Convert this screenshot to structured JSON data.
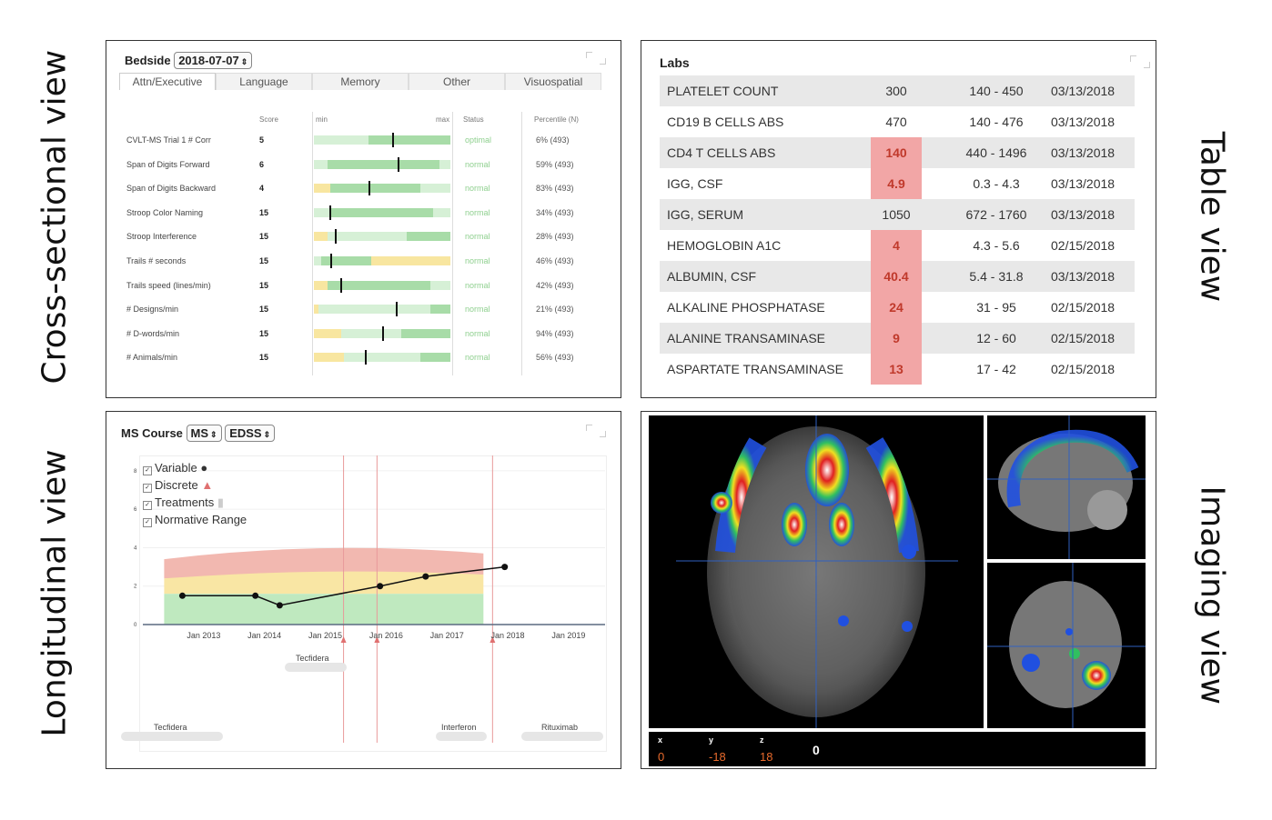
{
  "labels": {
    "cross_sectional": "Cross-sectional view",
    "longitudinal": "Longitudinal view",
    "table": "Table view",
    "imaging": "Imaging view"
  },
  "bedside": {
    "title": "Bedside",
    "date": "2018-07-07",
    "tabs": [
      "Attn/Executive",
      "Language",
      "Memory",
      "Other",
      "Visuospatial"
    ],
    "columns": {
      "score": "Score",
      "min": "min",
      "max": "max",
      "status": "Status",
      "percentile": "Percentile (N)"
    },
    "rows": [
      {
        "name": "CVLT-MS Trial 1 # Corr",
        "score": "5",
        "status": "optimal",
        "percentile": "6% (493)",
        "level": 0.57,
        "yellow": [
          0,
          0
        ],
        "dark": [
          0.4,
          1.0
        ]
      },
      {
        "name": "Span of Digits Forward",
        "score": "6",
        "status": "normal",
        "percentile": "59% (493)",
        "level": 0.61,
        "yellow": [
          0,
          0
        ],
        "dark": [
          0.1,
          0.92
        ]
      },
      {
        "name": "Span of Digits Backward",
        "score": "4",
        "status": "normal",
        "percentile": "83% (493)",
        "level": 0.4,
        "yellow": [
          0,
          0.12
        ],
        "dark": [
          0.12,
          0.78
        ]
      },
      {
        "name": "Stroop Color Naming",
        "score": "15",
        "status": "normal",
        "percentile": "34% (493)",
        "level": 0.11,
        "yellow": [
          0,
          0
        ],
        "dark": [
          0.12,
          0.87
        ]
      },
      {
        "name": "Stroop Interference",
        "score": "15",
        "status": "normal",
        "percentile": "28% (493)",
        "level": 0.15,
        "yellow": [
          0,
          0.1
        ],
        "dark": [
          0.68,
          1.0
        ]
      },
      {
        "name": "Trails # seconds",
        "score": "15",
        "status": "normal",
        "percentile": "46% (493)",
        "level": 0.12,
        "yellow": [
          0.42,
          1.0
        ],
        "dark": [
          0.05,
          0.42
        ]
      },
      {
        "name": "Trails speed (lines/min)",
        "score": "15",
        "status": "normal",
        "percentile": "42% (493)",
        "level": 0.19,
        "yellow": [
          0,
          0.1
        ],
        "dark": [
          0.1,
          0.85
        ]
      },
      {
        "name": "# Designs/min",
        "score": "15",
        "status": "normal",
        "percentile": "21% (493)",
        "level": 0.6,
        "yellow": [
          0,
          0.03
        ],
        "dark": [
          0.85,
          1.0
        ]
      },
      {
        "name": "# D-words/min",
        "score": "15",
        "status": "normal",
        "percentile": "94% (493)",
        "level": 0.5,
        "yellow": [
          0,
          0.2
        ],
        "dark": [
          0.64,
          1.0
        ]
      },
      {
        "name": "# Animals/min",
        "score": "15",
        "status": "normal",
        "percentile": "56% (493)",
        "level": 0.37,
        "yellow": [
          0,
          0.22
        ],
        "dark": [
          0.78,
          1.0
        ]
      }
    ]
  },
  "labs": {
    "title": "Labs",
    "rows": [
      {
        "test": "PLATELET COUNT",
        "value": "300",
        "range": "140 - 450",
        "date": "03/13/2018",
        "flag": false
      },
      {
        "test": "CD19 B CELLS ABS",
        "value": "470",
        "range": "140 - 476",
        "date": "03/13/2018",
        "flag": false
      },
      {
        "test": "CD4 T CELLS ABS",
        "value": "140",
        "range": "440 - 1496",
        "date": "03/13/2018",
        "flag": true
      },
      {
        "test": "IGG, CSF",
        "value": "4.9",
        "range": "0.3 - 4.3",
        "date": "03/13/2018",
        "flag": true
      },
      {
        "test": "IGG, SERUM",
        "value": "1050",
        "range": "672 - 1760",
        "date": "03/13/2018",
        "flag": false
      },
      {
        "test": "HEMOGLOBIN A1C",
        "value": "4",
        "range": "4.3 - 5.6",
        "date": "02/15/2018",
        "flag": true
      },
      {
        "test": "ALBUMIN, CSF",
        "value": "40.4",
        "range": "5.4 - 31.8",
        "date": "03/13/2018",
        "flag": true
      },
      {
        "test": "ALKALINE PHOSPHATASE",
        "value": "24",
        "range": "31 - 95",
        "date": "02/15/2018",
        "flag": true
      },
      {
        "test": "ALANINE TRANSAMINASE",
        "value": "9",
        "range": "12 - 60",
        "date": "02/15/2018",
        "flag": true
      },
      {
        "test": "ASPARTATE TRANSAMINASE",
        "value": "13",
        "range": "17 - 42",
        "date": "02/15/2018",
        "flag": true
      }
    ]
  },
  "ms_course": {
    "title": "MS Course",
    "select_1": "MS",
    "select_2": "EDSS",
    "legend": [
      "Variable",
      "Discrete",
      "Treatments",
      "Normative Range"
    ],
    "treatments": [
      "Tecfidera",
      "Tecfidera",
      "Interferon",
      "Rituximab"
    ],
    "chart_data": {
      "type": "line",
      "x_ticks": [
        "Jan 2013",
        "Jan 2014",
        "Jan 2015",
        "Jan 2016",
        "Jan 2017",
        "Jan 2018",
        "Jan 2019"
      ],
      "y_ticks": [
        "0",
        "2",
        "4",
        "6",
        "8"
      ],
      "ylim": [
        0,
        8
      ],
      "series": [
        {
          "values": [
            {
              "x": 2012.65,
              "y": 1.5
            },
            {
              "x": 2013.85,
              "y": 1.5
            },
            {
              "x": 2014.25,
              "y": 1.0
            },
            {
              "x": 2015.9,
              "y": 2.0
            },
            {
              "x": 2016.65,
              "y": 2.5
            },
            {
              "x": 2017.95,
              "y": 3.0
            }
          ]
        }
      ],
      "normative_bands": {
        "x_range": [
          2012.35,
          2017.6
        ],
        "green_top": 1.6,
        "yellow_top": 2.6,
        "red_top": 4.0
      },
      "events_x": [
        2015.3,
        2015.85,
        2017.75
      ]
    }
  },
  "imaging": {
    "x_label": "x",
    "y_label": "y",
    "z_label": "z",
    "x": "0",
    "y": "-18",
    "z": "18",
    "intensity": "0"
  }
}
